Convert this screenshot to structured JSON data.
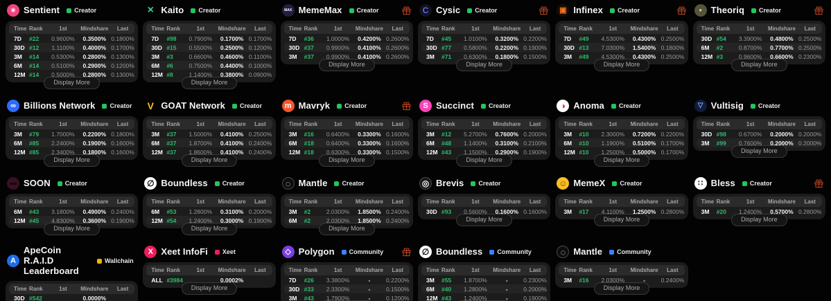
{
  "table_headers": [
    "Time",
    "Rank",
    "1st",
    "Mindshare",
    "Last"
  ],
  "display_more_label": "Display More",
  "colors": {
    "rank_green": "#2ebd6b",
    "gift_orange": "#b5401f",
    "card_bg": "#1c1c1c",
    "row_stripe": "#242424"
  },
  "badge_colors": {
    "Creator": "#22c55e",
    "Community": "#3b82f6",
    "Wallchain": "#eab308",
    "Xeet": "#ec1e5b"
  },
  "layout_rows": [
    [
      0,
      1,
      2,
      3,
      4,
      5
    ],
    [
      6,
      7,
      8,
      9,
      10,
      11
    ],
    [
      12,
      13,
      14,
      15,
      16,
      17
    ],
    [
      18,
      19,
      20,
      21,
      22
    ]
  ],
  "cards": [
    {
      "name": "Sentient",
      "badge": "Creator",
      "gift": false,
      "icon": {
        "name": "sentient-logo",
        "bg": "#f0427c",
        "fg": "#ffffff",
        "glyph": "✳",
        "size": 9
      },
      "rows": [
        {
          "time": "7D",
          "rank": "#22",
          "first": "0.9600%",
          "mindshare": "0.3500%",
          "last": "0.1800%"
        },
        {
          "time": "30D",
          "rank": "#12",
          "first": "1.1100%",
          "mindshare": "0.4000%",
          "last": "0.1700%"
        },
        {
          "time": "3M",
          "rank": "#14",
          "first": "0.5300%",
          "mindshare": "0.2800%",
          "last": "0.1300%"
        },
        {
          "time": "6M",
          "rank": "#14",
          "first": "0.5100%",
          "mindshare": "0.2900%",
          "last": "0.1200%"
        },
        {
          "time": "12M",
          "rank": "#14",
          "first": "0.5000%",
          "mindshare": "0.2800%",
          "last": "0.1300%"
        }
      ]
    },
    {
      "name": "Kaito",
      "badge": "Creator",
      "gift": false,
      "icon": {
        "name": "kaito-logo",
        "bg": "transparent",
        "fg": "#2dd4a0",
        "glyph": "×",
        "size": 16
      },
      "rows": [
        {
          "time": "7D",
          "rank": "#98",
          "first": "0.7900%",
          "mindshare": "0.1700%",
          "last": "0.1700%"
        },
        {
          "time": "30D",
          "rank": "#15",
          "first": "0.5500%",
          "mindshare": "0.2500%",
          "last": "0.1200%"
        },
        {
          "time": "3M",
          "rank": "#3",
          "first": "0.6600%",
          "mindshare": "0.4600%",
          "last": "0.1100%"
        },
        {
          "time": "6M",
          "rank": "#6",
          "first": "0.7500%",
          "mindshare": "0.4400%",
          "last": "0.1000%"
        },
        {
          "time": "12M",
          "rank": "#8",
          "first": "1.1400%",
          "mindshare": "0.3800%",
          "last": "0.0900%"
        }
      ]
    },
    {
      "name": "MemeMax",
      "badge": "Creator",
      "gift": true,
      "icon": {
        "name": "mememax-logo",
        "bg": "#261d3f",
        "fg": "#ffffff",
        "glyph": "MAX",
        "size": 5
      },
      "rows": [
        {
          "time": "7D",
          "rank": "#36",
          "first": "1.0000%",
          "mindshare": "0.4200%",
          "last": "0.2600%"
        },
        {
          "time": "30D",
          "rank": "#37",
          "first": "0.9900%",
          "mindshare": "0.4100%",
          "last": "0.2600%"
        },
        {
          "time": "3M",
          "rank": "#37",
          "first": "0.9900%",
          "mindshare": "0.4100%",
          "last": "0.2600%"
        }
      ]
    },
    {
      "name": "Cysic",
      "badge": "Creator",
      "gift": true,
      "icon": {
        "name": "cysic-logo",
        "bg": "#11131f",
        "fg": "#6366f1",
        "glyph": "C",
        "size": 12
      },
      "rows": [
        {
          "time": "7D",
          "rank": "#45",
          "first": "1.0100%",
          "mindshare": "0.3200%",
          "last": "0.2200%"
        },
        {
          "time": "30D",
          "rank": "#77",
          "first": "0.5800%",
          "mindshare": "0.2200%",
          "last": "0.1900%"
        },
        {
          "time": "3M",
          "rank": "#71",
          "first": "0.6300%",
          "mindshare": "0.1800%",
          "last": "0.1500%"
        }
      ]
    },
    {
      "name": "Infinex",
      "badge": "Creator",
      "gift": true,
      "icon": {
        "name": "infinex-logo",
        "bg": "#170d06",
        "fg": "#f97316",
        "glyph": "▣",
        "size": 11
      },
      "rows": [
        {
          "time": "7D",
          "rank": "#49",
          "first": "4.5300%",
          "mindshare": "0.4300%",
          "last": "0.2500%"
        },
        {
          "time": "30D",
          "rank": "#13",
          "first": "7.0300%",
          "mindshare": "1.5400%",
          "last": "0.1800%"
        },
        {
          "time": "3M",
          "rank": "#49",
          "first": "4.5300%",
          "mindshare": "0.4300%",
          "last": "0.2500%"
        }
      ]
    },
    {
      "name": "Theoriq",
      "badge": "Creator",
      "gift": true,
      "icon": {
        "name": "theoriq-logo",
        "bg": "#55543a",
        "fg": "#c9c99a",
        "glyph": "●",
        "size": 8
      },
      "rows": [
        {
          "time": "30D",
          "rank": "#54",
          "first": "3.3900%",
          "mindshare": "0.4800%",
          "last": "0.2500%"
        },
        {
          "time": "6M",
          "rank": "#2",
          "first": "0.8700%",
          "mindshare": "0.7700%",
          "last": "0.2500%"
        },
        {
          "time": "12M",
          "rank": "#3",
          "first": "0.9600%",
          "mindshare": "0.6600%",
          "last": "0.2300%"
        }
      ]
    },
    {
      "name": "Billions Network",
      "badge": "Creator",
      "gift": false,
      "icon": {
        "name": "billions-network-logo",
        "bg": "#2e6bff",
        "fg": "#ffffff",
        "glyph": "∞",
        "size": 11
      },
      "rows": [
        {
          "time": "3M",
          "rank": "#79",
          "first": "1.7000%",
          "mindshare": "0.2200%",
          "last": "0.1800%"
        },
        {
          "time": "6M",
          "rank": "#85",
          "first": "2.2400%",
          "mindshare": "0.1900%",
          "last": "0.1600%"
        },
        {
          "time": "12M",
          "rank": "#85",
          "first": "2.3400%",
          "mindshare": "0.1800%",
          "last": "0.1600%"
        }
      ]
    },
    {
      "name": "GOAT Network",
      "badge": "Creator",
      "gift": false,
      "icon": {
        "name": "goat-network-logo",
        "bg": "transparent",
        "fg": "#fbbf24",
        "glyph": "V",
        "size": 14
      },
      "rows": [
        {
          "time": "3M",
          "rank": "#37",
          "first": "1.5000%",
          "mindshare": "0.4100%",
          "last": "0.2500%"
        },
        {
          "time": "6M",
          "rank": "#37",
          "first": "1.8700%",
          "mindshare": "0.4100%",
          "last": "0.2400%"
        },
        {
          "time": "12M",
          "rank": "#37",
          "first": "1.8600%",
          "mindshare": "0.4100%",
          "last": "0.2400%"
        }
      ]
    },
    {
      "name": "Mavryk",
      "badge": "Creator",
      "gift": true,
      "icon": {
        "name": "mavryk-logo",
        "bg": "#f2572b",
        "fg": "#ffffff",
        "glyph": "m",
        "size": 11
      },
      "rows": [
        {
          "time": "3M",
          "rank": "#16",
          "first": "0.6400%",
          "mindshare": "0.3300%",
          "last": "0.1600%"
        },
        {
          "time": "6M",
          "rank": "#18",
          "first": "0.6400%",
          "mindshare": "0.3300%",
          "last": "0.1600%"
        },
        {
          "time": "12M",
          "rank": "#18",
          "first": "0.6300%",
          "mindshare": "0.3300%",
          "last": "0.1500%"
        }
      ]
    },
    {
      "name": "Succinct",
      "badge": "Creator",
      "gift": false,
      "icon": {
        "name": "succinct-logo",
        "bg": "#f646b8",
        "fg": "#ffffff",
        "glyph": "S",
        "size": 11
      },
      "rows": [
        {
          "time": "3M",
          "rank": "#12",
          "first": "5.2700%",
          "mindshare": "0.7600%",
          "last": "0.2000%"
        },
        {
          "time": "6M",
          "rank": "#48",
          "first": "1.1400%",
          "mindshare": "0.3100%",
          "last": "0.2100%"
        },
        {
          "time": "12M",
          "rank": "#43",
          "first": "1.1500%",
          "mindshare": "0.2900%",
          "last": "0.1900%"
        }
      ]
    },
    {
      "name": "Anoma",
      "badge": "Creator",
      "gift": false,
      "icon": {
        "name": "anoma-logo",
        "bg": "#ffffff",
        "fg": "#dc2626",
        "glyph": "◑",
        "size": 12
      },
      "rows": [
        {
          "time": "3M",
          "rank": "#10",
          "first": "2.3000%",
          "mindshare": "0.7200%",
          "last": "0.2200%"
        },
        {
          "time": "6M",
          "rank": "#10",
          "first": "1.1900%",
          "mindshare": "0.5100%",
          "last": "0.1700%"
        },
        {
          "time": "12M",
          "rank": "#10",
          "first": "1.2500%",
          "mindshare": "0.5000%",
          "last": "0.1700%"
        }
      ]
    },
    {
      "name": "Vultisig",
      "badge": "Creator",
      "gift": false,
      "icon": {
        "name": "vultisig-logo",
        "bg": "#101c3a",
        "fg": "#7da2ff",
        "glyph": "▽",
        "size": 10
      },
      "rows": [
        {
          "time": "30D",
          "rank": "#98",
          "first": "0.6700%",
          "mindshare": "0.2000%",
          "last": "0.2000%"
        },
        {
          "time": "3M",
          "rank": "#99",
          "first": "0.7600%",
          "mindshare": "0.2000%",
          "last": "0.2000%"
        }
      ]
    },
    {
      "name": "SOON",
      "badge": "Creator",
      "gift": false,
      "icon": {
        "name": "soon-logo",
        "bg": "#3a0f24",
        "fg": "#16060f",
        "glyph": "▬",
        "size": 10
      },
      "rows": [
        {
          "time": "6M",
          "rank": "#43",
          "first": "3.1800%",
          "mindshare": "0.4900%",
          "last": "0.2400%"
        },
        {
          "time": "12M",
          "rank": "#45",
          "first": "4.8300%",
          "mindshare": "0.3600%",
          "last": "0.1900%"
        }
      ]
    },
    {
      "name": "Boundless",
      "badge": "Creator",
      "gift": false,
      "icon": {
        "name": "boundless-logo",
        "bg": "#ffffff",
        "fg": "#111111",
        "glyph": "∅",
        "size": 12
      },
      "rows": [
        {
          "time": "6M",
          "rank": "#53",
          "first": "1.2800%",
          "mindshare": "0.3100%",
          "last": "0.2000%"
        },
        {
          "time": "12M",
          "rank": "#54",
          "first": "1.2400%",
          "mindshare": "0.3000%",
          "last": "0.1900%"
        }
      ]
    },
    {
      "name": "Mantle",
      "badge": "Creator",
      "gift": false,
      "icon": {
        "name": "mantle-logo",
        "bg": "#0d0d0d",
        "fg": "#e5e5e5",
        "glyph": "◌",
        "size": 13,
        "border": "#4a4a4a"
      },
      "rows": [
        {
          "time": "3M",
          "rank": "#2",
          "first": "2.0300%",
          "mindshare": "1.8500%",
          "last": "0.2400%"
        },
        {
          "time": "6M",
          "rank": "#2",
          "first": "2.0300%",
          "mindshare": "1.8500%",
          "last": "0.2400%"
        }
      ]
    },
    {
      "name": "Brevis",
      "badge": "Creator",
      "gift": false,
      "icon": {
        "name": "brevis-logo",
        "bg": "#171717",
        "fg": "#f5f5f5",
        "glyph": "◎",
        "size": 12,
        "border": "#4a4a4a"
      },
      "rows": [
        {
          "time": "30D",
          "rank": "#93",
          "first": "0.5600%",
          "mindshare": "0.1600%",
          "last": "0.1600%"
        }
      ]
    },
    {
      "name": "MemeX",
      "badge": "Creator",
      "gift": false,
      "icon": {
        "name": "memex-logo",
        "bg": "#fbbf24",
        "fg": "#92400e",
        "glyph": "☺",
        "size": 12
      },
      "rows": [
        {
          "time": "3M",
          "rank": "#17",
          "first": "4.1100%",
          "mindshare": "1.2500%",
          "last": "0.2800%"
        }
      ]
    },
    {
      "name": "Bless",
      "badge": "Creator",
      "gift": true,
      "icon": {
        "name": "bless-logo",
        "bg": "#ffffff",
        "fg": "#111111",
        "glyph": "∷",
        "size": 11
      },
      "rows": [
        {
          "time": "3M",
          "rank": "#20",
          "first": "1.2400%",
          "mindshare": "0.5700%",
          "last": "0.2800%"
        }
      ]
    },
    {
      "name": "ApeCoin R.A.I.D Leaderboard",
      "badge": "Wallchain",
      "gift": false,
      "icon": {
        "name": "apecoin-logo",
        "bg": "#1e6ee6",
        "fg": "#ffffff",
        "glyph": "A",
        "size": 11
      },
      "rows": [
        {
          "time": "30D",
          "rank": "#542",
          "first": "",
          "mindshare": "0.0000%",
          "last": ""
        }
      ]
    },
    {
      "name": "Xeet InfoFi",
      "badge": "Xeet",
      "gift": false,
      "icon": {
        "name": "xeet-logo",
        "bg": "#ec1e5b",
        "fg": "#ffffff",
        "glyph": "X",
        "size": 11
      },
      "rows": [
        {
          "time": "ALL",
          "rank": "#3984",
          "first": "",
          "mindshare": "0.0002%",
          "last": ""
        }
      ]
    },
    {
      "name": "Polygon",
      "badge": "Community",
      "gift": true,
      "icon": {
        "name": "polygon-logo",
        "bg": "#7b3fe4",
        "fg": "#ffffff",
        "glyph": "◇",
        "size": 11
      },
      "rows": [
        {
          "time": "7D",
          "rank": "#26",
          "first": "3.3800%",
          "mindshare": "-",
          "last": "0.2200%"
        },
        {
          "time": "30D",
          "rank": "#33",
          "first": "2.3300%",
          "mindshare": "-",
          "last": "0.1500%"
        },
        {
          "time": "3M",
          "rank": "#43",
          "first": "1.7900%",
          "mindshare": "-",
          "last": "0.1200%"
        }
      ]
    },
    {
      "name": "Boundless",
      "badge": "Community",
      "gift": false,
      "icon": {
        "name": "boundless-logo",
        "bg": "#ffffff",
        "fg": "#111111",
        "glyph": "∅",
        "size": 12
      },
      "rows": [
        {
          "time": "3M",
          "rank": "#55",
          "first": "1.8700%",
          "mindshare": "-",
          "last": "0.2300%"
        },
        {
          "time": "6M",
          "rank": "#40",
          "first": "1.2800%",
          "mindshare": "-",
          "last": "0.2000%"
        },
        {
          "time": "12M",
          "rank": "#43",
          "first": "1.2400%",
          "mindshare": "-",
          "last": "0.1900%"
        }
      ]
    },
    {
      "name": "Mantle",
      "badge": "Community",
      "gift": false,
      "icon": {
        "name": "mantle-logo",
        "bg": "#0d0d0d",
        "fg": "#e5e5e5",
        "glyph": "◌",
        "size": 13,
        "border": "#4a4a4a"
      },
      "rows": [
        {
          "time": "3M",
          "rank": "#16",
          "first": "2.0300%",
          "mindshare": "-",
          "last": "0.2400%"
        }
      ]
    }
  ]
}
